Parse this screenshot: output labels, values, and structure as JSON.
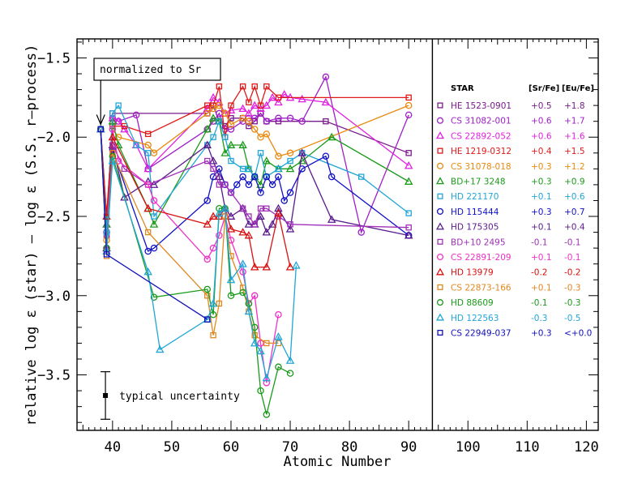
{
  "chart_data": {
    "type": "line",
    "xlabel": "Atomic Number",
    "ylabel": "relative log ε (star)  –  log ε (S.S. r–process)",
    "xlim": [
      34,
      122
    ],
    "ylim": [
      -3.85,
      -1.38
    ],
    "x_ticks": [
      40,
      50,
      60,
      70,
      80,
      90,
      100,
      110,
      120
    ],
    "y_ticks": [
      -1.5,
      -2.0,
      -2.5,
      -3.0,
      -3.5
    ],
    "x_tick_labels": [
      "40",
      "50",
      "60",
      "70",
      "80",
      "90",
      "100",
      "110",
      "120"
    ],
    "y_tick_labels": [
      "−1.5",
      "−2.0",
      "−2.5",
      "−3.0",
      "−3.5"
    ],
    "divider_x": 94,
    "annotation_text": "normalized to Sr",
    "annotation_point": [
      38,
      -1.95
    ],
    "uncertainty_label": "typical uncertainty",
    "uncertainty": {
      "x": 38.8,
      "y": -3.63,
      "err": 0.15
    },
    "legend_header": {
      "star": "STAR",
      "sr": "[Sr/Fe]",
      "eu": "[Eu/Fe]"
    },
    "series": [
      {
        "name": "HE 1523-0901",
        "sr": "+0.5",
        "eu": "+1.8",
        "marker": "square",
        "color": "#7a1a8c",
        "x": [
          38,
          39,
          40,
          56,
          57,
          58,
          59,
          60,
          62,
          63,
          64,
          65,
          66,
          68,
          76,
          90
        ],
        "y": [
          -1.95,
          -2.62,
          -1.85,
          -1.85,
          -1.8,
          -1.9,
          -1.93,
          -1.88,
          -1.88,
          -1.93,
          -1.9,
          -1.85,
          -1.9,
          -1.9,
          -1.9,
          -2.1
        ]
      },
      {
        "name": "CS 31082-001",
        "sr": "+0.6",
        "eu": "+1.7",
        "marker": "circle",
        "color": "#a020c8",
        "x": [
          38,
          39,
          40,
          41,
          44,
          46,
          56,
          57,
          58,
          59,
          60,
          62,
          63,
          64,
          65,
          66,
          68,
          70,
          72,
          76,
          82,
          90
        ],
        "y": [
          -1.95,
          -2.6,
          -1.88,
          -1.9,
          -1.86,
          -2.2,
          -1.95,
          -1.9,
          -1.85,
          -1.95,
          -1.95,
          -1.9,
          -1.88,
          -1.88,
          -1.85,
          -1.9,
          -1.88,
          -1.88,
          -1.9,
          -1.62,
          -2.6,
          -1.86
        ]
      },
      {
        "name": "CS 22892-052",
        "sr": "+0.6",
        "eu": "+1.6",
        "marker": "triangle",
        "color": "#e020e0",
        "x": [
          38,
          39,
          40,
          41,
          42,
          44,
          46,
          56,
          57,
          58,
          59,
          60,
          62,
          63,
          64,
          65,
          66,
          67,
          68,
          69,
          70,
          72,
          76,
          90
        ],
        "y": [
          -1.95,
          -2.55,
          -1.88,
          -1.9,
          -1.95,
          -2.05,
          -2.2,
          -1.82,
          -1.75,
          -1.78,
          -1.85,
          -1.83,
          -1.82,
          -1.85,
          -1.8,
          -1.82,
          -1.8,
          -1.75,
          -1.78,
          -1.73,
          -1.75,
          -1.76,
          -1.78,
          -2.18
        ]
      },
      {
        "name": "HE 1219-0312",
        "sr": "+0.4",
        "eu": "+1.5",
        "marker": "square",
        "color": "#e01818",
        "x": [
          38,
          39,
          40,
          42,
          46,
          56,
          57,
          58,
          59,
          60,
          62,
          63,
          64,
          65,
          66,
          68,
          90
        ],
        "y": [
          -1.95,
          -2.5,
          -1.93,
          -1.93,
          -1.98,
          -1.8,
          -1.8,
          -1.68,
          -2.0,
          -1.8,
          -1.68,
          -1.78,
          -1.68,
          -1.8,
          -1.68,
          -1.75,
          -1.75
        ]
      },
      {
        "name": "CS 31078-018",
        "sr": "+0.3",
        "eu": "+1.2",
        "marker": "circle",
        "color": "#e88a10",
        "x": [
          38,
          39,
          40,
          41,
          46,
          47,
          56,
          57,
          58,
          59,
          60,
          62,
          63,
          64,
          65,
          66,
          68,
          70,
          90
        ],
        "y": [
          -1.95,
          -2.65,
          -1.95,
          -2.0,
          -2.05,
          -2.1,
          -1.85,
          -1.82,
          -1.8,
          -1.85,
          -1.92,
          -1.88,
          -1.9,
          -1.95,
          -2.0,
          -1.98,
          -2.12,
          -2.1,
          -1.8
        ]
      },
      {
        "name": "BD+17 3248",
        "sr": "+0.3",
        "eu": "+0.9",
        "marker": "triangle",
        "color": "#1a9a1a",
        "x": [
          38,
          39,
          40,
          41,
          46,
          47,
          56,
          57,
          58,
          59,
          60,
          62,
          63,
          64,
          65,
          66,
          68,
          70,
          72,
          77,
          90
        ],
        "y": [
          -1.95,
          -2.55,
          -1.9,
          -2.05,
          -2.45,
          -2.55,
          -1.95,
          -1.88,
          -1.9,
          -2.1,
          -2.05,
          -2.05,
          -2.2,
          -2.25,
          -2.3,
          -2.15,
          -2.2,
          -2.2,
          -2.15,
          -2.0,
          -2.28
        ]
      },
      {
        "name": "HD 221170",
        "sr": "+0.1",
        "eu": "+0.6",
        "marker": "square",
        "color": "#22a6d6",
        "x": [
          38,
          39,
          40,
          41,
          44,
          46,
          47,
          56,
          57,
          58,
          59,
          60,
          62,
          63,
          64,
          65,
          66,
          68,
          70,
          72,
          82,
          90
        ],
        "y": [
          -1.95,
          -2.6,
          -1.85,
          -1.8,
          -2.05,
          -2.1,
          -2.5,
          -2.05,
          -2.0,
          -1.9,
          -2.0,
          -2.15,
          -2.2,
          -2.2,
          -2.25,
          -2.1,
          -2.25,
          -2.2,
          -2.15,
          -2.1,
          -2.25,
          -2.48
        ]
      },
      {
        "name": "HD 115444",
        "sr": "+0.3",
        "eu": "+0.7",
        "marker": "circle",
        "color": "#1010c8",
        "x": [
          38,
          39,
          40,
          46,
          47,
          56,
          57,
          58,
          59,
          60,
          61,
          62,
          63,
          64,
          65,
          66,
          67,
          68,
          69,
          70,
          72,
          76,
          77,
          90
        ],
        "y": [
          -1.95,
          -2.7,
          -2.08,
          -2.72,
          -2.7,
          -2.4,
          -2.25,
          -2.2,
          -2.3,
          -2.35,
          -2.3,
          -2.25,
          -2.3,
          -2.25,
          -2.35,
          -2.25,
          -2.3,
          -2.25,
          -2.4,
          -2.35,
          -2.2,
          -2.12,
          -2.25,
          -2.62
        ]
      },
      {
        "name": "HD 175305",
        "sr": "+0.1",
        "eu": "+0.4",
        "marker": "triangle",
        "color": "#5a1a8c",
        "x": [
          38,
          39,
          40,
          42,
          46,
          47,
          56,
          57,
          58,
          59,
          60,
          62,
          63,
          64,
          65,
          66,
          67,
          68,
          70,
          72,
          77,
          90
        ],
        "y": [
          -1.95,
          -2.7,
          -2.05,
          -2.38,
          -2.28,
          -2.3,
          -2.05,
          -2.15,
          -2.25,
          -2.45,
          -2.5,
          -2.45,
          -2.55,
          -2.55,
          -2.5,
          -2.6,
          -2.55,
          -2.45,
          -2.58,
          -2.1,
          -2.52,
          -2.62
        ]
      },
      {
        "name": "BD+10 2495",
        "sr": "-0.1",
        "eu": "-0.1",
        "marker": "square",
        "color": "#a030b8",
        "x": [
          38,
          39,
          40,
          42,
          46,
          56,
          57,
          58,
          59,
          60,
          62,
          63,
          64,
          65,
          66,
          68,
          70,
          90
        ],
        "y": [
          -1.95,
          -2.72,
          -2.05,
          -2.2,
          -2.3,
          -2.15,
          -2.2,
          -2.3,
          -2.3,
          -2.35,
          -2.45,
          -2.5,
          -2.55,
          -2.45,
          -2.45,
          -2.5,
          -2.55,
          -2.57
        ]
      },
      {
        "name": "CS 22891-209",
        "sr": "+0.1",
        "eu": "-0.1",
        "marker": "circle",
        "color": "#f030c8",
        "x": [
          38,
          39,
          40,
          41,
          46,
          47,
          56,
          57,
          58,
          59,
          60,
          62,
          63,
          64,
          65,
          66,
          68
        ],
        "y": [
          -1.95,
          -2.7,
          -1.95,
          -2.15,
          -2.3,
          -2.4,
          -2.77,
          -2.7,
          -2.62,
          -2.5,
          -2.65,
          -2.85,
          -3.05,
          -3.0,
          -3.3,
          -3.55,
          -3.12
        ]
      },
      {
        "name": "HD 13979",
        "sr": "-0.2",
        "eu": "-0.2",
        "marker": "triangle",
        "color": "#d81010",
        "x": [
          38,
          39,
          40,
          46,
          56,
          57,
          58,
          59,
          60,
          62,
          63,
          64,
          66,
          68,
          70
        ],
        "y": [
          -1.95,
          -2.5,
          -2.0,
          -2.45,
          -2.55,
          -2.5,
          -2.5,
          -2.45,
          -2.58,
          -2.6,
          -2.62,
          -2.82,
          -2.82,
          -2.48,
          -2.82
        ]
      },
      {
        "name": "CS 22873-166",
        "sr": "+0.1",
        "eu": "-0.3",
        "marker": "square",
        "color": "#e08820",
        "x": [
          38,
          39,
          40,
          46,
          56,
          57,
          58,
          59,
          60,
          62,
          63,
          64,
          66,
          68
        ],
        "y": [
          -1.95,
          -2.75,
          -2.1,
          -2.6,
          -3.0,
          -3.25,
          -3.05,
          -2.5,
          -2.75,
          -2.95,
          -3.1,
          -3.25,
          -3.3,
          -3.3
        ]
      },
      {
        "name": "HD 88609",
        "sr": "-0.1",
        "eu": "-0.3",
        "marker": "circle",
        "color": "#1a9a1a",
        "x": [
          38,
          39,
          40,
          47,
          56,
          57,
          58,
          59,
          60,
          62,
          63,
          64,
          65,
          66,
          68,
          70
        ],
        "y": [
          -1.95,
          -2.7,
          -2.12,
          -3.01,
          -2.96,
          -3.12,
          -2.45,
          -2.45,
          -3.0,
          -2.98,
          -3.05,
          -3.2,
          -3.6,
          -3.75,
          -3.45,
          -3.49
        ]
      },
      {
        "name": "HD 122563",
        "sr": "-0.3",
        "eu": "-0.5",
        "marker": "triangle",
        "color": "#22a6d6",
        "x": [
          38,
          39,
          40,
          46,
          48,
          56,
          57,
          58,
          59,
          60,
          62,
          63,
          64,
          65,
          66,
          68,
          70,
          71
        ],
        "y": [
          -1.95,
          -2.72,
          -2.15,
          -2.85,
          -3.34,
          -3.15,
          -3.05,
          -2.48,
          -2.45,
          -2.9,
          -2.8,
          -3.1,
          -3.3,
          -3.35,
          -3.52,
          -3.26,
          -3.41,
          -2.81
        ]
      },
      {
        "name": "CS 22949-037",
        "sr": "+0.3",
        "eu": "<+0.0",
        "marker": "square",
        "color": "#1010b8",
        "x": [
          38,
          39,
          56
        ],
        "y": [
          -1.95,
          -2.74,
          -3.15
        ]
      }
    ]
  }
}
